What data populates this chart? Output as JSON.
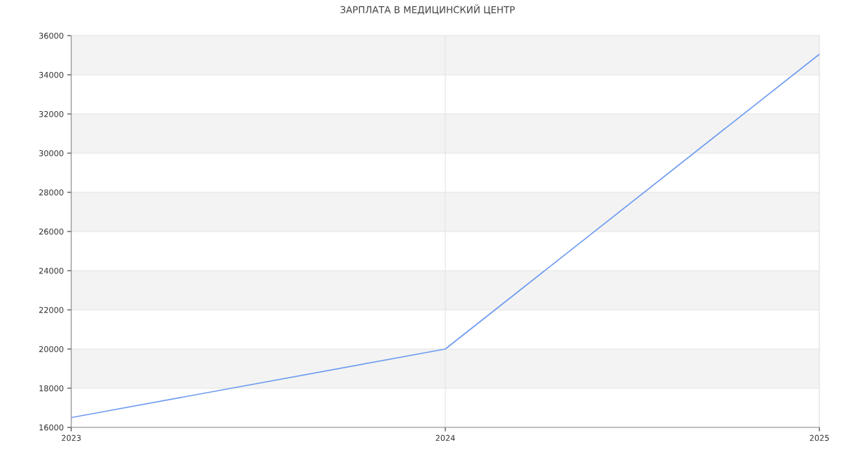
{
  "chart_data": {
    "type": "line",
    "title": "ЗАРПЛАТА В МЕДИЦИНСКИЙ ЦЕНТР",
    "x": [
      2023,
      2024,
      2025
    ],
    "series": [
      {
        "color": "#6f9cf0",
        "values": [
          16500,
          20000,
          35050
        ]
      }
    ],
    "xlim": [
      2023,
      2025
    ],
    "xticks": [
      2023,
      2024,
      2025
    ],
    "ylim": [
      16000,
      36000
    ],
    "yticks": [
      16000,
      18000,
      20000,
      22000,
      24000,
      26000,
      28000,
      30000,
      32000,
      34000,
      36000
    ],
    "bands": [
      {
        "axis": "y",
        "from": 18000,
        "to": 20000,
        "color": "#f3f3f3"
      },
      {
        "axis": "y",
        "from": 22000,
        "to": 24000,
        "color": "#f3f3f3"
      },
      {
        "axis": "y",
        "from": 26000,
        "to": 28000,
        "color": "#f3f3f3"
      },
      {
        "axis": "y",
        "from": 30000,
        "to": 32000,
        "color": "#f3f3f3"
      },
      {
        "axis": "y",
        "from": 34000,
        "to": 36000,
        "color": "#f3f3f3"
      }
    ],
    "grid": true,
    "legend": false,
    "marker": "none",
    "line_style": "solid"
  }
}
